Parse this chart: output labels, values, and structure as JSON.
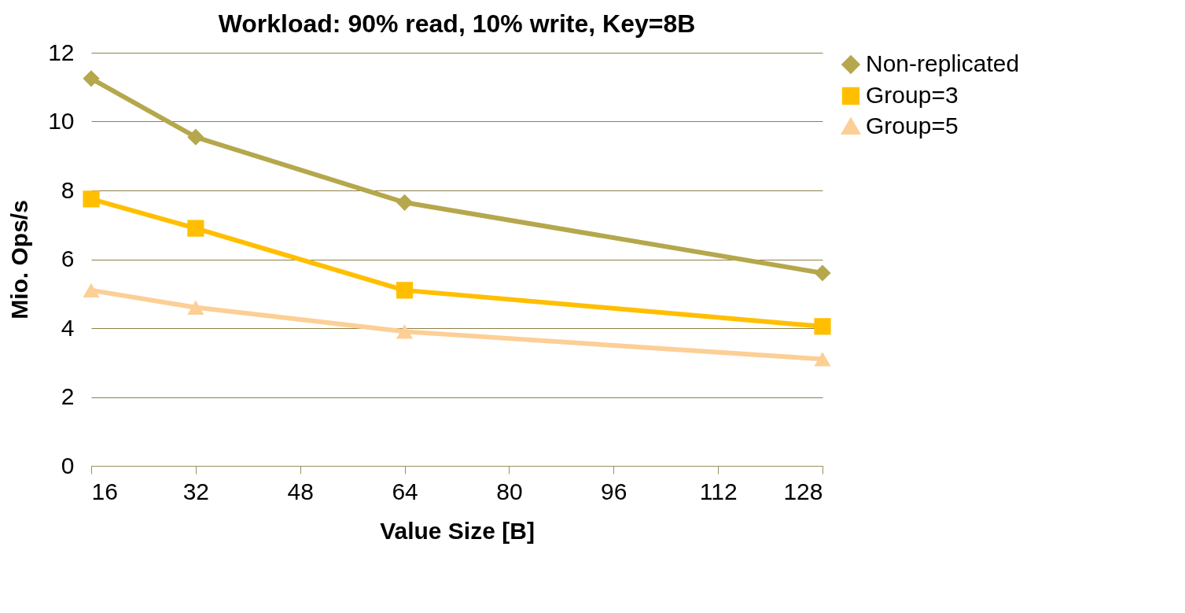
{
  "chart_data": {
    "type": "line",
    "title": "Workload: 90% read, 10% write, Key=8B",
    "xlabel": "Value Size [B]",
    "ylabel": "Mio. Ops/s",
    "x": [
      16,
      32,
      64,
      128
    ],
    "series": [
      {
        "name": "Non-replicated",
        "color": "#b5a74c",
        "marker": "diamond",
        "values": [
          11.25,
          9.55,
          7.65,
          5.6
        ]
      },
      {
        "name": "Group=3",
        "color": "#ffbf00",
        "marker": "square",
        "values": [
          7.75,
          6.9,
          5.1,
          4.05
        ]
      },
      {
        "name": "Group=5",
        "color": "#fccf96",
        "marker": "triangle",
        "values": [
          5.1,
          4.6,
          3.9,
          3.1
        ]
      }
    ],
    "xlim": [
      16,
      128
    ],
    "xticks": [
      16,
      32,
      48,
      64,
      80,
      96,
      112,
      128
    ],
    "ylim": [
      0,
      12
    ],
    "yticks": [
      0,
      2,
      4,
      6,
      8,
      10,
      12
    ],
    "grid": "y",
    "legend": "right",
    "line_style": "solid"
  }
}
